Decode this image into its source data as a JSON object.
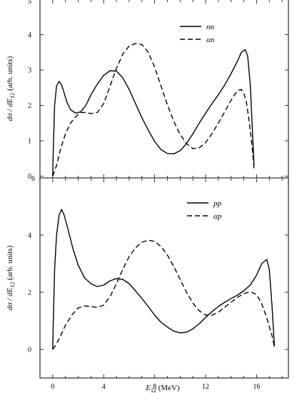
{
  "chart_data": [
    {
      "type": "line",
      "ylabel_parts": {
        "d1": "d",
        "sigma": "σ",
        "slash": " / ",
        "d2": "dE",
        "sub": "12",
        "units": " (arb. units)"
      },
      "xlim": [
        -1,
        18.5
      ],
      "ylim": [
        -0.05,
        5
      ],
      "yticks": [
        0,
        1,
        2,
        3,
        4
      ],
      "yticks_labels": [
        "0",
        "1",
        "2",
        "3",
        "4"
      ],
      "top_label": "5",
      "series": [
        {
          "name": "nn",
          "style": "solid",
          "x": [
            0.0,
            0.05,
            0.15,
            0.3,
            0.5,
            0.7,
            0.9,
            1.1,
            1.4,
            1.8,
            2.2,
            2.6,
            3.0,
            3.5,
            4.0,
            4.5,
            5.0,
            5.5,
            6.0,
            6.5,
            7.0,
            7.5,
            8.0,
            8.5,
            9.0,
            9.5,
            10.0,
            10.5,
            11.0,
            11.5,
            12.0,
            12.5,
            13.0,
            13.5,
            14.0,
            14.5,
            14.8,
            15.1,
            15.3,
            15.5,
            15.65,
            15.75,
            15.8
          ],
          "y": [
            0.0,
            0.8,
            2.0,
            2.55,
            2.68,
            2.58,
            2.35,
            2.1,
            1.88,
            1.78,
            1.82,
            2.0,
            2.3,
            2.6,
            2.85,
            2.98,
            2.97,
            2.78,
            2.45,
            2.05,
            1.65,
            1.3,
            0.98,
            0.75,
            0.64,
            0.63,
            0.72,
            0.92,
            1.2,
            1.5,
            1.78,
            2.05,
            2.3,
            2.58,
            2.9,
            3.25,
            3.5,
            3.58,
            3.4,
            2.6,
            1.5,
            0.7,
            0.3
          ]
        },
        {
          "name": "αn",
          "style": "dashed",
          "x": [
            0.0,
            0.3,
            0.6,
            1.0,
            1.4,
            1.8,
            2.2,
            2.6,
            3.0,
            3.5,
            4.0,
            4.5,
            5.0,
            5.5,
            6.0,
            6.5,
            7.0,
            7.5,
            8.0,
            8.5,
            9.0,
            9.5,
            10.0,
            10.5,
            11.0,
            11.5,
            12.0,
            12.5,
            13.0,
            13.5,
            14.0,
            14.5,
            14.8,
            15.0,
            15.2,
            15.4,
            15.6,
            15.75,
            15.8
          ],
          "y": [
            0.0,
            0.3,
            0.75,
            1.2,
            1.5,
            1.68,
            1.8,
            1.8,
            1.77,
            1.8,
            2.05,
            2.55,
            3.05,
            3.45,
            3.68,
            3.75,
            3.72,
            3.5,
            3.08,
            2.55,
            2.02,
            1.55,
            1.18,
            0.92,
            0.78,
            0.8,
            0.95,
            1.2,
            1.5,
            1.82,
            2.15,
            2.42,
            2.45,
            2.35,
            2.1,
            1.6,
            1.0,
            0.45,
            0.2
          ]
        }
      ]
    },
    {
      "type": "line",
      "ylabel_parts": {
        "d1": "d",
        "sigma": "σ",
        "slash": " / ",
        "d2": "dE",
        "sub": "12",
        "units": " (arb. units)"
      },
      "xlabel_parts": {
        "main": "E",
        "sub": "12",
        "units": " (MeV)"
      },
      "xlim": [
        -1,
        18.5
      ],
      "ylim": [
        -1,
        6
      ],
      "xticks": [
        0,
        4,
        8,
        12,
        16
      ],
      "xticks_labels": [
        "0",
        "4",
        "8",
        "12",
        "16"
      ],
      "yticks": [
        0,
        2,
        4
      ],
      "yticks_labels": [
        "0",
        "2",
        "4"
      ],
      "top_label": "6",
      "series": [
        {
          "name": "pp",
          "style": "solid",
          "x": [
            0.0,
            0.05,
            0.15,
            0.3,
            0.5,
            0.7,
            0.9,
            1.2,
            1.6,
            2.0,
            2.5,
            3.0,
            3.5,
            4.0,
            4.5,
            5.0,
            5.5,
            6.0,
            6.5,
            7.0,
            7.5,
            8.0,
            8.5,
            9.0,
            9.5,
            10.0,
            10.5,
            11.0,
            11.5,
            12.0,
            12.5,
            13.0,
            13.5,
            14.0,
            14.5,
            15.0,
            15.5,
            16.0,
            16.4,
            16.8,
            17.0,
            17.2,
            17.35,
            17.4
          ],
          "y": [
            0.0,
            1.0,
            2.8,
            4.0,
            4.7,
            4.9,
            4.7,
            4.2,
            3.5,
            2.95,
            2.5,
            2.3,
            2.2,
            2.25,
            2.4,
            2.48,
            2.45,
            2.3,
            2.05,
            1.78,
            1.5,
            1.2,
            0.95,
            0.78,
            0.64,
            0.58,
            0.6,
            0.72,
            0.9,
            1.12,
            1.32,
            1.5,
            1.65,
            1.78,
            1.9,
            2.05,
            2.25,
            2.6,
            3.0,
            3.15,
            2.8,
            1.6,
            0.5,
            0.1
          ]
        },
        {
          "name": "αp",
          "style": "dashed",
          "x": [
            0.0,
            0.3,
            0.7,
            1.0,
            1.5,
            2.0,
            2.5,
            3.0,
            3.5,
            4.0,
            4.5,
            5.0,
            5.5,
            6.0,
            6.5,
            7.0,
            7.5,
            8.0,
            8.5,
            9.0,
            9.5,
            10.0,
            10.5,
            11.0,
            11.5,
            12.0,
            12.5,
            13.0,
            13.5,
            14.0,
            14.5,
            15.0,
            15.5,
            16.0,
            16.4,
            16.8,
            17.0,
            17.2,
            17.35,
            17.4
          ],
          "y": [
            0.0,
            0.2,
            0.55,
            0.85,
            1.2,
            1.45,
            1.52,
            1.5,
            1.47,
            1.55,
            1.85,
            2.3,
            2.8,
            3.25,
            3.55,
            3.75,
            3.82,
            3.78,
            3.6,
            3.3,
            2.9,
            2.45,
            2.0,
            1.62,
            1.35,
            1.2,
            1.2,
            1.3,
            1.48,
            1.65,
            1.82,
            1.95,
            2.02,
            1.92,
            1.6,
            1.1,
            0.8,
            0.5,
            0.2,
            0.05
          ]
        }
      ]
    }
  ]
}
